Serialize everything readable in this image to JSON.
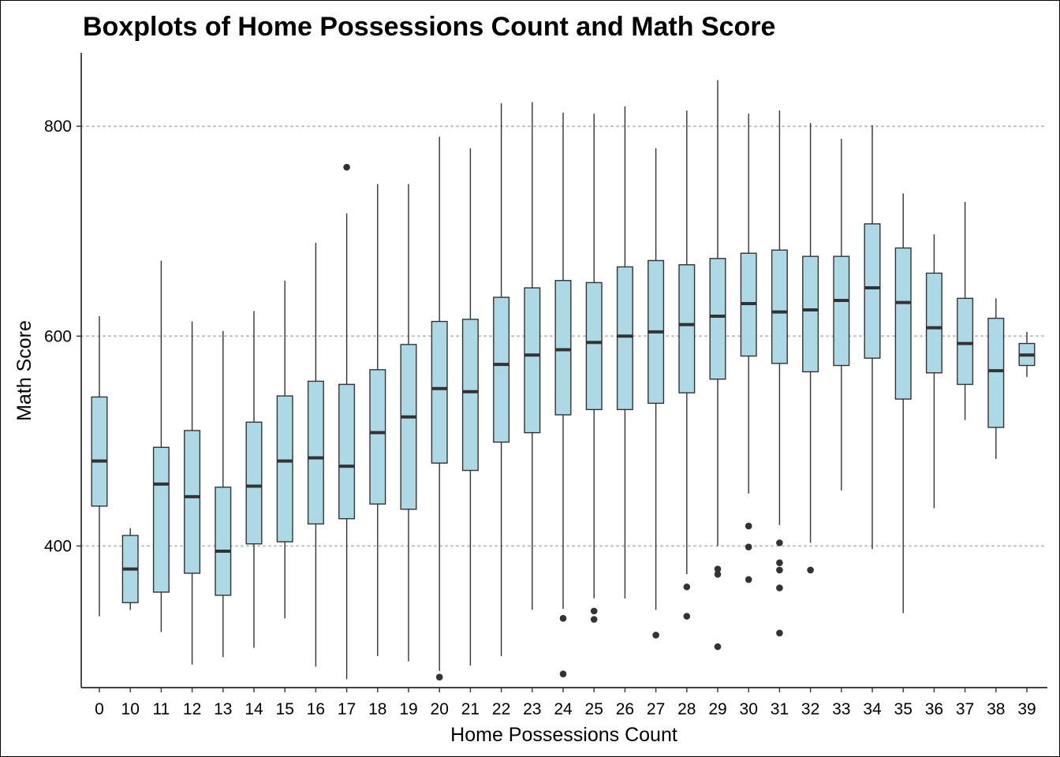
{
  "chart_data": {
    "type": "boxplot",
    "title": "Boxplots of Home Possessions Count and Math Score",
    "xlabel": "Home Possessions Count",
    "ylabel": "Math Score",
    "ylim": [
      265,
      870
    ],
    "yticks": [
      400,
      600,
      800
    ],
    "grid": "horizontal dotted at y ticks",
    "colors": {
      "box_fill": "#add8e6",
      "box_stroke": "#333333",
      "median": "#333333",
      "outlier": "#333333",
      "grid": "#bebebe"
    },
    "categories": [
      "0",
      "10",
      "11",
      "12",
      "13",
      "14",
      "15",
      "16",
      "17",
      "18",
      "19",
      "20",
      "21",
      "22",
      "23",
      "24",
      "25",
      "26",
      "27",
      "28",
      "29",
      "30",
      "31",
      "32",
      "33",
      "34",
      "35",
      "36",
      "37",
      "38",
      "39"
    ],
    "boxes": [
      {
        "category": "0",
        "whisker_low": 333,
        "q1": 438,
        "median": 481,
        "q3": 542,
        "whisker_high": 619,
        "outliers": []
      },
      {
        "category": "10",
        "whisker_low": 339,
        "q1": 346,
        "median": 378,
        "q3": 410,
        "whisker_high": 417,
        "outliers": []
      },
      {
        "category": "11",
        "whisker_low": 318,
        "q1": 356,
        "median": 459,
        "q3": 494,
        "whisker_high": 672,
        "outliers": []
      },
      {
        "category": "12",
        "whisker_low": 287,
        "q1": 374,
        "median": 447,
        "q3": 510,
        "whisker_high": 614,
        "outliers": []
      },
      {
        "category": "13",
        "whisker_low": 294,
        "q1": 353,
        "median": 395,
        "q3": 456,
        "whisker_high": 605,
        "outliers": []
      },
      {
        "category": "14",
        "whisker_low": 303,
        "q1": 402,
        "median": 457,
        "q3": 518,
        "whisker_high": 624,
        "outliers": []
      },
      {
        "category": "15",
        "whisker_low": 331,
        "q1": 404,
        "median": 481,
        "q3": 543,
        "whisker_high": 653,
        "outliers": []
      },
      {
        "category": "16",
        "whisker_low": 285,
        "q1": 421,
        "median": 484,
        "q3": 557,
        "whisker_high": 689,
        "outliers": []
      },
      {
        "category": "17",
        "whisker_low": 273,
        "q1": 426,
        "median": 476,
        "q3": 554,
        "whisker_high": 717,
        "outliers": [
          761
        ]
      },
      {
        "category": "18",
        "whisker_low": 295,
        "q1": 440,
        "median": 508,
        "q3": 568,
        "whisker_high": 745,
        "outliers": []
      },
      {
        "category": "19",
        "whisker_low": 290,
        "q1": 435,
        "median": 523,
        "q3": 592,
        "whisker_high": 745,
        "outliers": []
      },
      {
        "category": "20",
        "whisker_low": 281,
        "q1": 479,
        "median": 550,
        "q3": 614,
        "whisker_high": 790,
        "outliers": [
          275
        ]
      },
      {
        "category": "21",
        "whisker_low": 286,
        "q1": 472,
        "median": 547,
        "q3": 616,
        "whisker_high": 779,
        "outliers": []
      },
      {
        "category": "22",
        "whisker_low": 295,
        "q1": 499,
        "median": 573,
        "q3": 637,
        "whisker_high": 822,
        "outliers": []
      },
      {
        "category": "23",
        "whisker_low": 339,
        "q1": 508,
        "median": 582,
        "q3": 646,
        "whisker_high": 823,
        "outliers": []
      },
      {
        "category": "24",
        "whisker_low": 340,
        "q1": 525,
        "median": 587,
        "q3": 653,
        "whisker_high": 813,
        "outliers": [
          331,
          278
        ]
      },
      {
        "category": "25",
        "whisker_low": 350,
        "q1": 530,
        "median": 594,
        "q3": 651,
        "whisker_high": 812,
        "outliers": [
          338,
          330
        ]
      },
      {
        "category": "26",
        "whisker_low": 350,
        "q1": 530,
        "median": 600,
        "q3": 666,
        "whisker_high": 819,
        "outliers": []
      },
      {
        "category": "27",
        "whisker_low": 339,
        "q1": 536,
        "median": 604,
        "q3": 672,
        "whisker_high": 779,
        "outliers": [
          315
        ]
      },
      {
        "category": "28",
        "whisker_low": 373,
        "q1": 546,
        "median": 611,
        "q3": 668,
        "whisker_high": 815,
        "outliers": [
          361,
          333
        ]
      },
      {
        "category": "29",
        "whisker_low": 400,
        "q1": 559,
        "median": 619,
        "q3": 674,
        "whisker_high": 844,
        "outliers": [
          378,
          373,
          304
        ]
      },
      {
        "category": "30",
        "whisker_low": 450,
        "q1": 581,
        "median": 631,
        "q3": 679,
        "whisker_high": 812,
        "outliers": [
          419,
          399,
          368
        ]
      },
      {
        "category": "31",
        "whisker_low": 420,
        "q1": 574,
        "median": 623,
        "q3": 682,
        "whisker_high": 815,
        "outliers": [
          403,
          384,
          377,
          360,
          317
        ]
      },
      {
        "category": "32",
        "whisker_low": 403,
        "q1": 566,
        "median": 625,
        "q3": 676,
        "whisker_high": 803,
        "outliers": [
          377
        ]
      },
      {
        "category": "33",
        "whisker_low": 453,
        "q1": 572,
        "median": 634,
        "q3": 676,
        "whisker_high": 788,
        "outliers": []
      },
      {
        "category": "34",
        "whisker_low": 397,
        "q1": 579,
        "median": 646,
        "q3": 707,
        "whisker_high": 801,
        "outliers": []
      },
      {
        "category": "35",
        "whisker_low": 336,
        "q1": 540,
        "median": 632,
        "q3": 684,
        "whisker_high": 736,
        "outliers": []
      },
      {
        "category": "36",
        "whisker_low": 436,
        "q1": 565,
        "median": 608,
        "q3": 660,
        "whisker_high": 697,
        "outliers": []
      },
      {
        "category": "37",
        "whisker_low": 520,
        "q1": 554,
        "median": 593,
        "q3": 636,
        "whisker_high": 728,
        "outliers": []
      },
      {
        "category": "38",
        "whisker_low": 483,
        "q1": 513,
        "median": 567,
        "q3": 617,
        "whisker_high": 636,
        "outliers": []
      },
      {
        "category": "39",
        "whisker_low": 561,
        "q1": 572,
        "median": 582,
        "q3": 593,
        "whisker_high": 604,
        "outliers": []
      }
    ]
  }
}
